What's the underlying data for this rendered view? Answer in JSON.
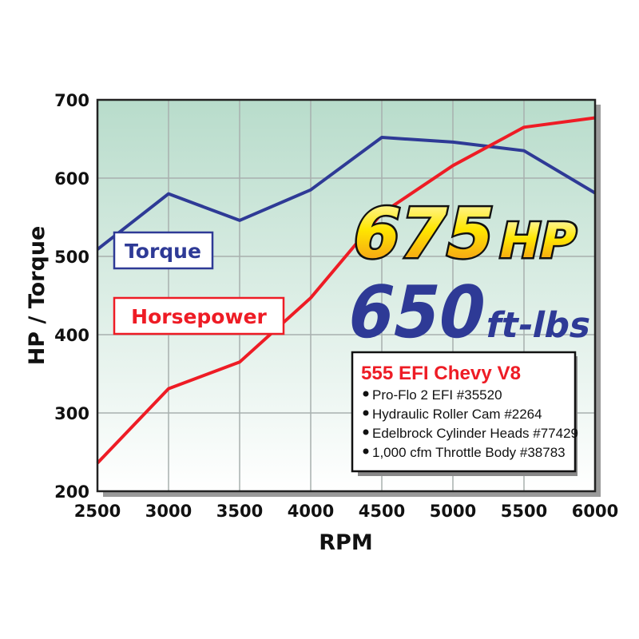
{
  "chart_data": {
    "type": "line",
    "xlabel": "RPM",
    "ylabel": "HP / Torque",
    "x": [
      2500,
      3000,
      3500,
      4000,
      4500,
      5000,
      5500,
      6000
    ],
    "xlim": [
      2500,
      6000
    ],
    "ylim": [
      200,
      700
    ],
    "xticks": [
      "2500",
      "3000",
      "3500",
      "4000",
      "4500",
      "5000",
      "5500",
      "6000"
    ],
    "yticks": [
      "200",
      "300",
      "400",
      "500",
      "600",
      "700"
    ],
    "grid": true,
    "series": [
      {
        "name": "Torque",
        "color": "#2e3a96",
        "values": [
          509,
          580,
          546,
          585,
          652,
          646,
          635,
          581
        ]
      },
      {
        "name": "Horsepower",
        "color": "#ee1c25",
        "values": [
          236,
          331,
          365,
          447,
          555,
          616,
          665,
          677
        ]
      }
    ],
    "annotations": {
      "hp_number": "675",
      "hp_unit": "HP",
      "torque_number": "650",
      "torque_unit": "ft-lbs"
    },
    "info_box": {
      "title": "555 EFI Chevy V8",
      "items": [
        "Pro-Flo 2 EFI #35520",
        "Hydraulic Roller Cam #2264",
        "Edelbrock Cylinder Heads #77429",
        "1,000 cfm Throttle Body #38783"
      ]
    },
    "colors": {
      "background_top": "#b8dccb",
      "background_bottom": "#ffffff",
      "grid": "#a8b0ae"
    }
  }
}
